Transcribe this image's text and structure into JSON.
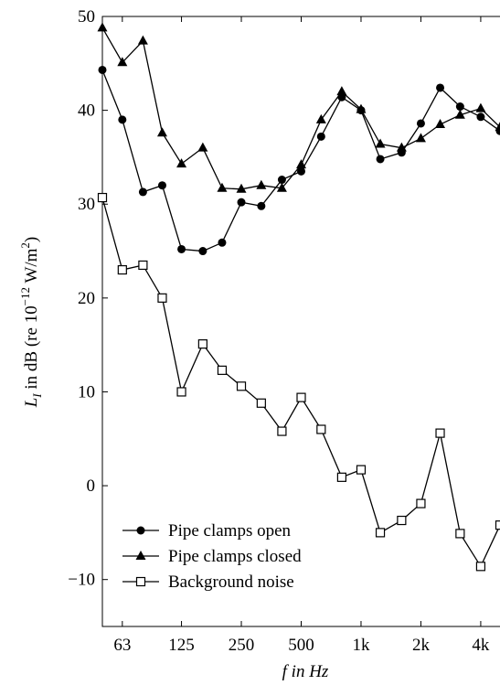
{
  "chart_data": {
    "type": "line",
    "xlabel": "f in Hz",
    "ylabel": [
      "L",
      "I",
      " in dB (re 10",
      "−12",
      " W/m",
      "2",
      ")"
    ],
    "x": [
      50,
      63,
      80,
      100,
      125,
      160,
      200,
      250,
      315,
      400,
      500,
      630,
      800,
      1000,
      1250,
      1600,
      2000,
      2500,
      3150,
      4000,
      5000
    ],
    "xlog": true,
    "xlim": [
      50,
      5000
    ],
    "xticks": [
      63,
      125,
      250,
      500,
      {
        "value": 1000,
        "label": "1k"
      },
      {
        "value": 2000,
        "label": "2k"
      },
      {
        "value": 4000,
        "label": "4k"
      }
    ],
    "ylim": [
      -15,
      50
    ],
    "yticks": [
      {
        "value": -10,
        "label": "−10"
      },
      0,
      10,
      20,
      30,
      40,
      50
    ],
    "legend": "lower left",
    "series": [
      {
        "name": "Pipe clamps open",
        "color": "#000000",
        "marker": "circle",
        "values": [
          44.3,
          39,
          31.3,
          32,
          25.2,
          25,
          25.9,
          30.2,
          29.8,
          32.6,
          33.5,
          37.2,
          41.4,
          40,
          34.8,
          35.5,
          38.6,
          42.4,
          40.4,
          39.3,
          37.8
        ]
      },
      {
        "name": "Pipe clamps closed",
        "color": "#000000",
        "marker": "triangle",
        "values": [
          48.8,
          45.1,
          47.4,
          37.6,
          34.3,
          36,
          31.7,
          31.6,
          32,
          31.7,
          34.2,
          39,
          42,
          40.1,
          36.4,
          36,
          37,
          38.5,
          39.5,
          40.2,
          38.2
        ]
      },
      {
        "name": "Background noise",
        "color": "#000000",
        "marker": "square",
        "values": [
          30.7,
          23,
          23.5,
          20,
          10,
          15.1,
          12.3,
          10.6,
          8.8,
          5.8,
          9.4,
          6,
          0.9,
          1.7,
          -5,
          -3.7,
          -1.9,
          5.6,
          -5.1,
          -8.6,
          -4.2
        ]
      }
    ]
  }
}
